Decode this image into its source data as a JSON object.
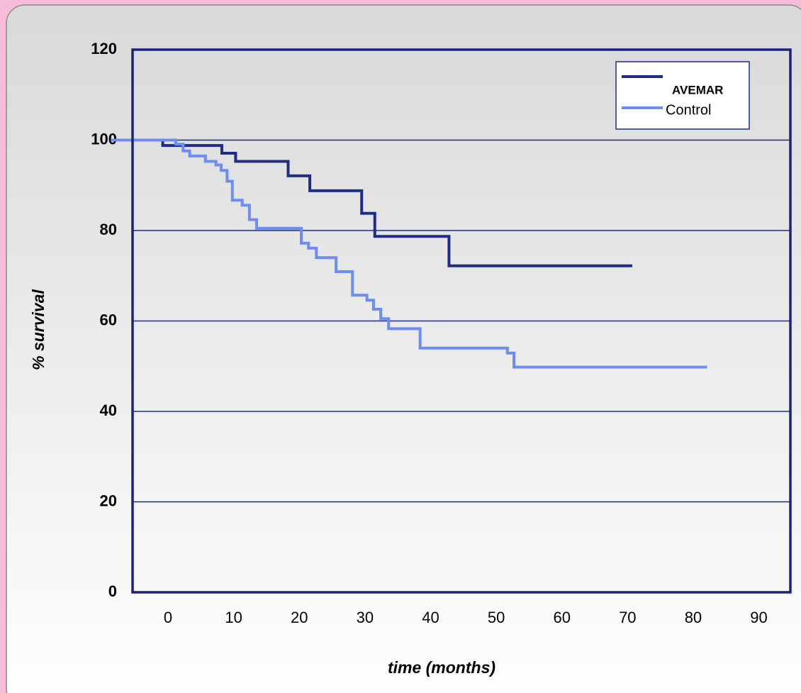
{
  "chart_data": {
    "type": "step",
    "xlabel": "time (months)",
    "ylabel": "% survival",
    "xlim": [
      -5.4,
      94.8
    ],
    "ylim": [
      0,
      120
    ],
    "xticks": [
      0,
      10,
      20,
      30,
      40,
      50,
      60,
      70,
      80,
      90
    ],
    "yticks": [
      0,
      20,
      40,
      60,
      80,
      100,
      120
    ],
    "grid": true,
    "legend": "top-right",
    "series": [
      {
        "name": "AVEMAR",
        "color": "#1f2d86",
        "x": [
          -8.5,
          -0.8,
          8.2,
          10.3,
          18.3,
          21.6,
          29.5,
          31.5,
          42.8,
          70.5
        ],
        "values": [
          100,
          98.8,
          97.1,
          95.3,
          92.1,
          88.8,
          83.8,
          78.7,
          72.2,
          72.2
        ]
      },
      {
        "name": "Control",
        "color": "#6d8ef0",
        "x": [
          -8.5,
          1.2,
          2.3,
          3.3,
          5.7,
          7.3,
          8.1,
          9.0,
          9.8,
          11.3,
          12.4,
          13.5,
          20.3,
          21.4,
          22.6,
          25.6,
          28.1,
          30.3,
          31.3,
          32.4,
          33.6,
          38.4,
          51.7,
          52.7,
          81.9
        ],
        "values": [
          100,
          99.1,
          97.6,
          96.5,
          95.3,
          94.5,
          93.3,
          90.9,
          86.7,
          85.6,
          82.4,
          80.5,
          77.2,
          76.1,
          74.0,
          70.9,
          65.7,
          64.6,
          62.6,
          60.5,
          58.3,
          54.0,
          52.9,
          49.8,
          49.8
        ]
      }
    ]
  }
}
